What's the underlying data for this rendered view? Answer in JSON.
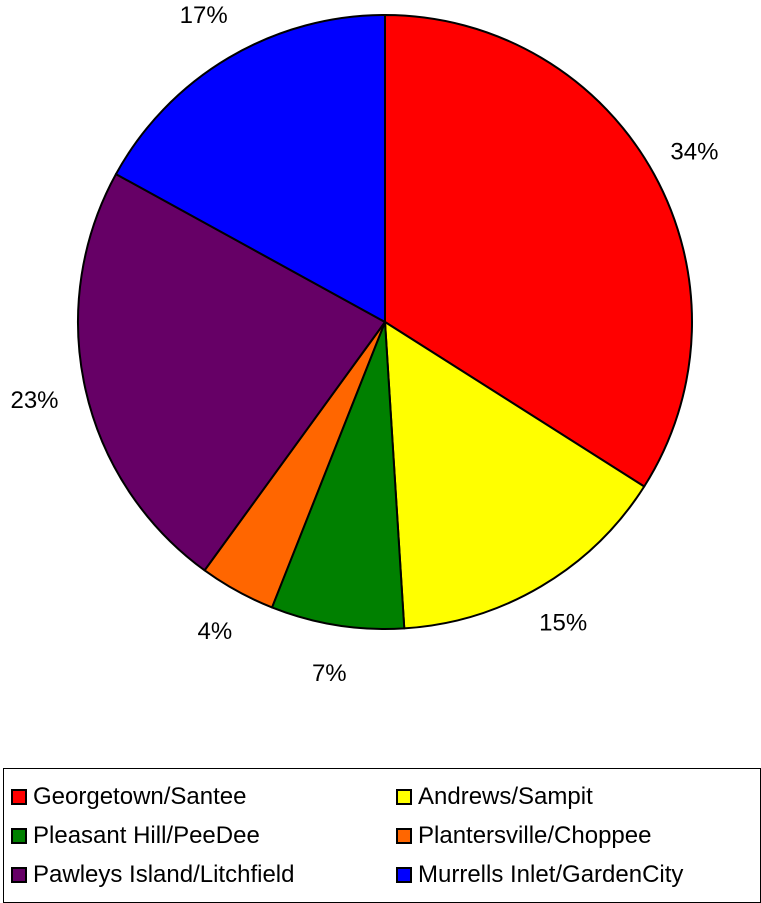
{
  "chart_data": {
    "type": "pie",
    "title": "",
    "start_angle_deg": 0,
    "direction": "clockwise",
    "legend_position": "bottom",
    "slices": [
      {
        "label": "Georgetown/Santee",
        "value": 34,
        "value_label": "34%",
        "color": "#ff0000"
      },
      {
        "label": "Andrews/Sampit",
        "value": 15,
        "value_label": "15%",
        "color": "#ffff00"
      },
      {
        "label": "Pleasant Hill/PeeDee",
        "value": 7,
        "value_label": "7%",
        "color": "#008000"
      },
      {
        "label": "Plantersville/Choppee",
        "value": 4,
        "value_label": "4%",
        "color": "#ff6600"
      },
      {
        "label": "Pawleys Island/Litchfield",
        "value": 23,
        "value_label": "23%",
        "color": "#660066"
      },
      {
        "label": "Murrells Inlet/GardenCity",
        "value": 17,
        "value_label": "17%",
        "color": "#0000ff"
      }
    ]
  }
}
